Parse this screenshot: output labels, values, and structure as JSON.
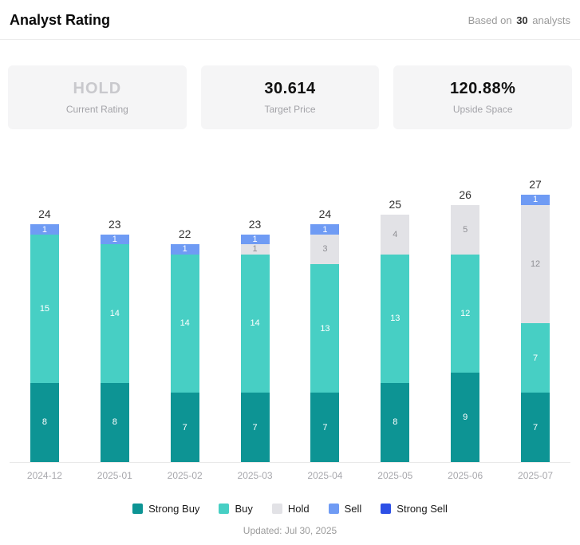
{
  "header": {
    "title": "Analyst Rating",
    "based_on": "Based on",
    "count": "30",
    "analysts": "analysts"
  },
  "stats": {
    "current_rating": {
      "value": "HOLD",
      "label": "Current Rating"
    },
    "target_price": {
      "value": "30.614",
      "label": "Target Price"
    },
    "upside_space": {
      "value": "120.88%",
      "label": "Upside Space"
    }
  },
  "chart_data": {
    "type": "bar",
    "stacked": true,
    "title": "Analyst Rating",
    "categories": [
      "2024-12",
      "2025-01",
      "2025-02",
      "2025-03",
      "2025-04",
      "2025-05",
      "2025-06",
      "2025-07"
    ],
    "series": [
      {
        "name": "Strong Buy",
        "color": "#0d9494",
        "label_color": "#ffffff",
        "values": [
          8,
          8,
          7,
          7,
          7,
          8,
          9,
          7
        ]
      },
      {
        "name": "Buy",
        "color": "#47cfc4",
        "label_color": "#ffffff",
        "values": [
          15,
          14,
          14,
          14,
          13,
          13,
          12,
          7
        ]
      },
      {
        "name": "Hold",
        "color": "#e2e2e6",
        "label_color": "#8f8f94",
        "values": [
          0,
          0,
          0,
          1,
          3,
          4,
          5,
          12
        ]
      },
      {
        "name": "Sell",
        "color": "#6f9bf4",
        "label_color": "#ffffff",
        "values": [
          1,
          1,
          1,
          1,
          1,
          0,
          0,
          1
        ]
      },
      {
        "name": "Strong Sell",
        "color": "#2d50e6",
        "label_color": "#ffffff",
        "values": [
          0,
          0,
          0,
          0,
          0,
          0,
          0,
          0
        ]
      }
    ],
    "totals": [
      24,
      23,
      22,
      23,
      24,
      25,
      26,
      27
    ],
    "ylim": [
      0,
      27
    ],
    "grid": false,
    "legend_position": "bottom"
  },
  "footer": {
    "updated": "Updated: Jul 30, 2025"
  }
}
